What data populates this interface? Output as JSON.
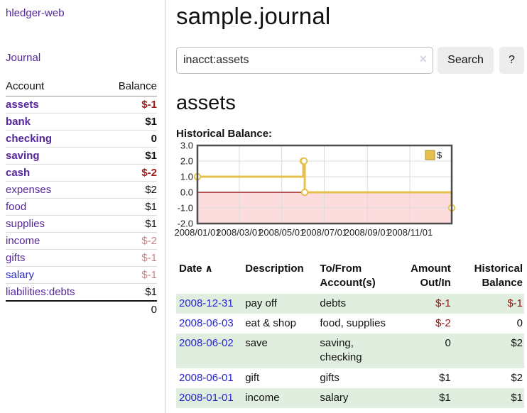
{
  "sidebar": {
    "brand": "hledger-web",
    "nav": [
      {
        "label": "Journal"
      }
    ],
    "accounts_table": {
      "headers": {
        "account": "Account",
        "balance": "Balance"
      },
      "rows": [
        {
          "name": "assets",
          "balance": "$-1",
          "indent": 1,
          "matched": true,
          "color": "purple",
          "balance_style": "neg-strong"
        },
        {
          "name": "bank",
          "balance": "$1",
          "indent": 2,
          "matched": true,
          "color": "purple",
          "balance_style": "pos-strong"
        },
        {
          "name": "checking",
          "balance": "0",
          "indent": 3,
          "matched": true,
          "color": "purple",
          "balance_style": "pos-strong"
        },
        {
          "name": "saving",
          "balance": "$1",
          "indent": 3,
          "matched": true,
          "color": "purple",
          "balance_style": "pos-strong"
        },
        {
          "name": "cash",
          "balance": "$-2",
          "indent": 2,
          "matched": true,
          "color": "purple",
          "balance_style": "neg-strong"
        },
        {
          "name": "expenses",
          "balance": "$2",
          "indent": 1,
          "matched": false,
          "color": "purple",
          "balance_style": "pos"
        },
        {
          "name": "food",
          "balance": "$1",
          "indent": 2,
          "matched": false,
          "color": "purple",
          "balance_style": "pos"
        },
        {
          "name": "supplies",
          "balance": "$1",
          "indent": 2,
          "matched": false,
          "color": "purple",
          "balance_style": "pos"
        },
        {
          "name": "income",
          "balance": "$-2",
          "indent": 1,
          "matched": false,
          "color": "purple",
          "balance_style": "neg-muted"
        },
        {
          "name": "gifts",
          "balance": "$-1",
          "indent": 2,
          "matched": false,
          "color": "purple",
          "balance_style": "neg-muted"
        },
        {
          "name": "salary",
          "balance": "$-1",
          "indent": 2,
          "matched": false,
          "color": "blue",
          "balance_style": "neg-muted"
        },
        {
          "name": "liabilities:debts",
          "balance": "$1",
          "indent": 1,
          "matched": false,
          "color": "purple",
          "balance_style": "pos"
        }
      ],
      "total": "0"
    }
  },
  "header": {
    "title": "sample.journal"
  },
  "search": {
    "value": "inacct:assets",
    "clear_icon": "×",
    "button_label": "Search",
    "help_label": "?"
  },
  "main": {
    "account_heading": "assets",
    "chart_title": "Historical Balance:"
  },
  "chart_data": {
    "type": "line",
    "step": true,
    "title": "Historical Balance:",
    "series": [
      {
        "name": "$",
        "color": "#e6c04d",
        "points": [
          {
            "x": "2008-01-01",
            "y": 1
          },
          {
            "x": "2008-06-01",
            "y": 2
          },
          {
            "x": "2008-06-02",
            "y": 2
          },
          {
            "x": "2008-06-03",
            "y": 0
          },
          {
            "x": "2008-12-31",
            "y": -1
          }
        ]
      }
    ],
    "x_range": [
      "2008-01-01",
      "2008-12-31"
    ],
    "x_tick_labels": [
      "2008/01/01",
      "2008/03/01",
      "2008/05/01",
      "2008/07/01",
      "2008/09/01",
      "2008/11/01"
    ],
    "y_ticks": [
      "3.0",
      "2.0",
      "1.0",
      "0.0",
      "-1.0",
      "-2.0"
    ],
    "ylim": [
      -2,
      3
    ],
    "grid": true,
    "legend": {
      "label": "$",
      "position": "top-right"
    },
    "zero_line_color": "#8b0000",
    "negative_fill": "#fcdcdc",
    "border_color": "#4d4d4d",
    "grid_color": "#dcdcdc"
  },
  "register": {
    "headers": {
      "date": "Date",
      "description": "Description",
      "accounts": "To/From Account(s)",
      "amount": "Amount Out/In",
      "balance": "Historical Balance"
    },
    "sort_icon": "∧",
    "rows": [
      {
        "date": "2008-12-31",
        "description": "pay off",
        "accounts": "debts",
        "amount": "$-1",
        "balance": "$-1"
      },
      {
        "date": "2008-06-03",
        "description": "eat & shop",
        "accounts": "food, supplies",
        "amount": "$-2",
        "balance": "0"
      },
      {
        "date": "2008-06-02",
        "description": "save",
        "accounts": "saving, checking",
        "amount": "0",
        "balance": "$2"
      },
      {
        "date": "2008-06-01",
        "description": "gift",
        "accounts": "gifts",
        "amount": "$1",
        "balance": "$2"
      },
      {
        "date": "2008-01-01",
        "description": "income",
        "accounts": "salary",
        "amount": "$1",
        "balance": "$1"
      }
    ]
  },
  "colors": {
    "link_purple": "#55269b",
    "link_blue": "#2525d2",
    "negative_strong": "#9e1a1a",
    "negative": "#8b1717",
    "negative_muted": "#c58585",
    "row_stripe_green": "#dfeede",
    "button_bg": "#ececec",
    "chart_line": "#e6c04d"
  }
}
